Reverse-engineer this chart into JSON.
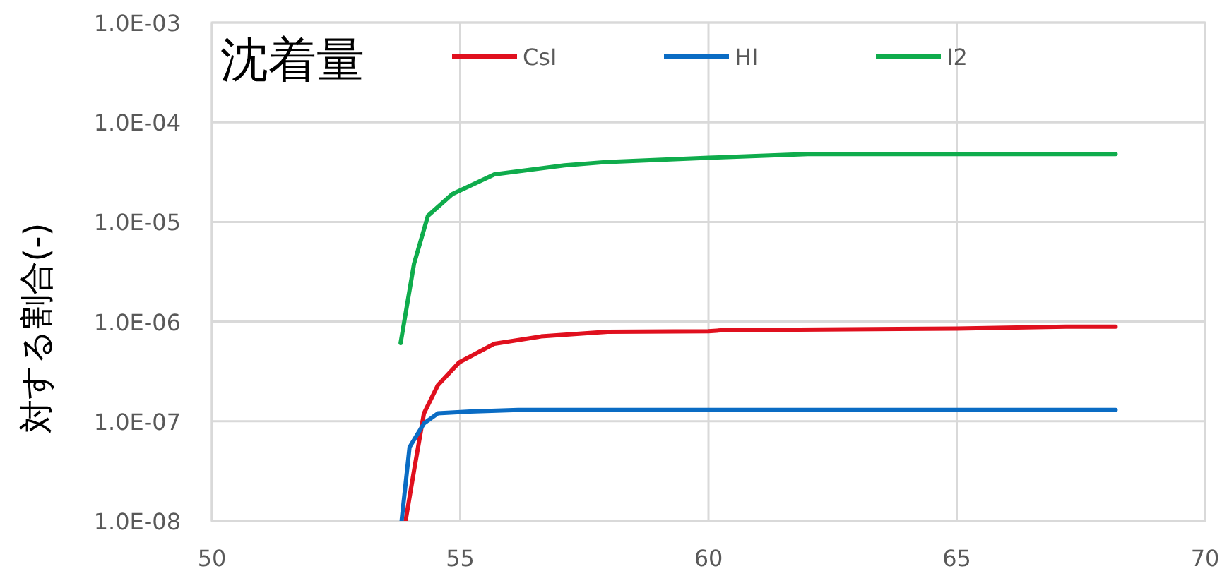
{
  "chart_data": {
    "type": "line",
    "title": "沈着量",
    "ylabel": "対する割合(-)",
    "log": "y",
    "grid": true,
    "legend": "top",
    "xlim": [
      50,
      70
    ],
    "xticks": [
      50,
      55,
      60,
      65,
      70
    ],
    "ylim": [
      1e-08,
      0.001
    ],
    "yticks": [
      {
        "value": 1e-08,
        "label": "1.0E-08"
      },
      {
        "value": 1e-07,
        "label": "1.0E-07"
      },
      {
        "value": 1e-06,
        "label": "1.0E-06"
      },
      {
        "value": 1e-05,
        "label": "1.0E-05"
      },
      {
        "value": 0.0001,
        "label": "1.0E-04"
      },
      {
        "value": 0.001,
        "label": "1.0E-03"
      }
    ],
    "series": [
      {
        "name": "CsI",
        "color": "#e0101e",
        "x": [
          53.9,
          54.07,
          54.27,
          54.55,
          54.98,
          55.69,
          56.63,
          57.97,
          60.0,
          60.3,
          65.0,
          67.2,
          68.2
        ],
        "values": [
          1e-08,
          3.2e-08,
          1.2e-07,
          2.3e-07,
          3.9e-07,
          6e-07,
          7.1e-07,
          7.9e-07,
          8e-07,
          8.2e-07,
          8.5e-07,
          8.9e-07,
          8.9e-07
        ]
      },
      {
        "name": "HI",
        "color": "#0a6cc4",
        "x": [
          53.82,
          53.98,
          54.27,
          54.55,
          55.2,
          56.17,
          68.2
        ],
        "values": [
          1e-08,
          5.5e-08,
          9.5e-08,
          1.2e-07,
          1.25e-07,
          1.3e-07,
          1.3e-07
        ]
      },
      {
        "name": "I2",
        "color": "#0fac4c",
        "x": [
          53.8,
          54.07,
          54.35,
          54.84,
          55.69,
          57.1,
          57.97,
          60.0,
          62.0,
          68.2
        ],
        "values": [
          6.1e-07,
          3.8e-06,
          1.15e-05,
          1.9e-05,
          3e-05,
          3.7e-05,
          4e-05,
          4.4e-05,
          4.8e-05,
          4.8e-05
        ]
      }
    ]
  }
}
